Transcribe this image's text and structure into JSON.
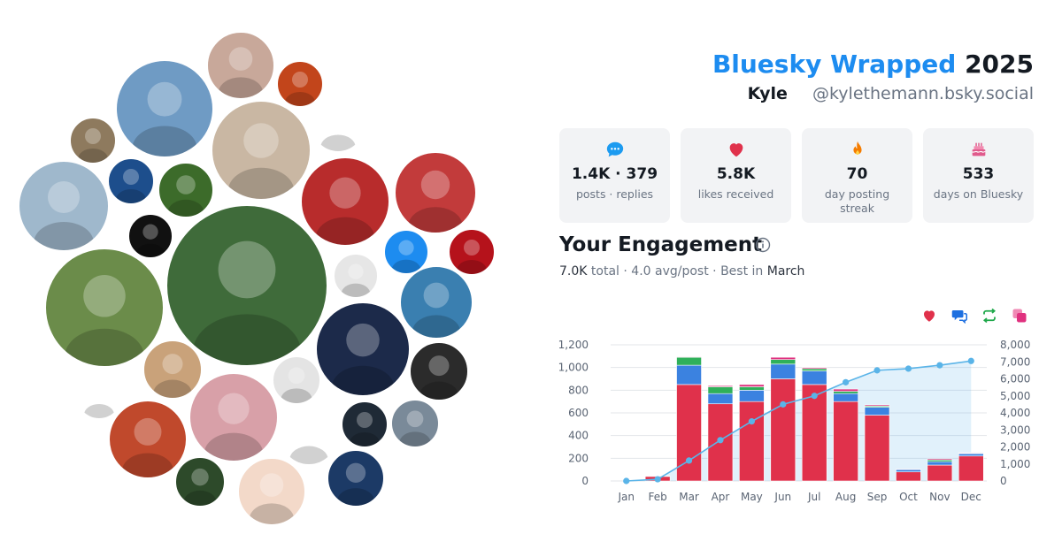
{
  "header": {
    "title_brand": "Bluesky Wrapped",
    "title_year": "2025",
    "user_name": "Kyle",
    "user_handle": "@kylethemann.bsky.social"
  },
  "stats": [
    {
      "icon": "speech-bubble-icon",
      "value": "1.4K · 379",
      "label": "posts · replies",
      "color": "#1d9bf0"
    },
    {
      "icon": "heart-icon",
      "value": "5.8K",
      "label": "likes received",
      "color": "#e0314b"
    },
    {
      "icon": "flame-icon",
      "value": "70",
      "label": "day posting streak",
      "color": "#f57c00"
    },
    {
      "icon": "cake-icon",
      "value": "533",
      "label": "days on Bluesky",
      "color": "#e05a8c"
    }
  ],
  "engagement": {
    "title": "Your Engagement",
    "total": "7.0K",
    "total_word": "total",
    "avg": "4.0 avg/post",
    "best_prefix": "Best in",
    "best_month": "March"
  },
  "legend_icons": [
    {
      "name": "heart-icon",
      "color": "#e0314b"
    },
    {
      "name": "reply-icon",
      "color": "#1d6fe0"
    },
    {
      "name": "repost-icon",
      "color": "#1fa84a"
    },
    {
      "name": "quote-icon",
      "color": "#e0317f"
    }
  ],
  "avatars": [
    {
      "name": "profile-photo",
      "bg": "#c8a89a"
    },
    {
      "name": "sunset-photo",
      "bg": "#c2451b"
    },
    {
      "name": "man-stadium-photo",
      "bg": "#6f9bc4"
    },
    {
      "name": "angels-halo-logo",
      "bg": "#ffffff"
    },
    {
      "name": "man-cap-photo",
      "bg": "#c9b7a3"
    },
    {
      "name": "woman-smiling-photo",
      "bg": "#8e7a5e"
    },
    {
      "name": "skn-news-logo",
      "bg": "#1d4e8c"
    },
    {
      "name": "bat-mask-avatar",
      "bg": "#3c6b2a"
    },
    {
      "name": "woman-red-cap-photo",
      "bg": "#b82c2c"
    },
    {
      "name": "elf-art-avatar",
      "bg": "#c23b3b"
    },
    {
      "name": "monitor-stand-photo",
      "bg": "#9fb8cc"
    },
    {
      "name": "athletics-a-logo",
      "bg": "#111111"
    },
    {
      "name": "anime-angels-avatar",
      "bg": "#3f6b3a"
    },
    {
      "name": "poop-emoji-badge",
      "bg": "#1d8cf0"
    },
    {
      "name": "angels-a-logo",
      "bg": "#b5121b"
    },
    {
      "name": "woman-sunglasses-photo",
      "bg": "#6b8c4a"
    },
    {
      "name": "sketch-avatar",
      "bg": "#e6e6e6"
    },
    {
      "name": "man-lake-photo",
      "bg": "#3a7fb0"
    },
    {
      "name": "halos-hub-logo",
      "bg": "#1c2a4a"
    },
    {
      "name": "woman-glasses-photo",
      "bg": "#c9a27a"
    },
    {
      "name": "man-suit-photo",
      "bg": "#e4e4e4"
    },
    {
      "name": "survivor-logo",
      "bg": "#2b2b2b"
    },
    {
      "name": "catcher-mask-icon",
      "bg": "#ffffff"
    },
    {
      "name": "goblin-art-avatar",
      "bg": "#c0492c"
    },
    {
      "name": "woman-kirby-photo",
      "bg": "#d8a0a8"
    },
    {
      "name": "eagles-logo",
      "bg": "#ffffff"
    },
    {
      "name": "man-bald-photo",
      "bg": "#1f2a36"
    },
    {
      "name": "man-blue-shirt-photo",
      "bg": "#7a8a99"
    },
    {
      "name": "bn-logo",
      "bg": "#2d4a2a"
    },
    {
      "name": "snorlax-avatar",
      "bg": "#f3d9c9"
    },
    {
      "name": "talkin-baseball-logo",
      "bg": "#1c3a66"
    }
  ],
  "chart_data": {
    "type": "bar",
    "categories": [
      "Jan",
      "Feb",
      "Mar",
      "Apr",
      "May",
      "Jun",
      "Jul",
      "Aug",
      "Sep",
      "Oct",
      "Nov",
      "Dec"
    ],
    "stacked": true,
    "series": [
      {
        "name": "Likes",
        "color": "#e0314b",
        "values": [
          0,
          40,
          850,
          680,
          700,
          900,
          850,
          700,
          580,
          80,
          140,
          220
        ]
      },
      {
        "name": "Replies",
        "color": "#3b82e0",
        "values": [
          0,
          5,
          170,
          90,
          100,
          130,
          120,
          70,
          70,
          20,
          30,
          20
        ]
      },
      {
        "name": "Reposts",
        "color": "#2fb05a",
        "values": [
          0,
          0,
          70,
          60,
          30,
          40,
          20,
          20,
          10,
          0,
          15,
          5
        ]
      },
      {
        "name": "Quotes",
        "color": "#e0317f",
        "values": [
          0,
          0,
          5,
          10,
          20,
          20,
          10,
          20,
          10,
          5,
          10,
          5
        ]
      }
    ],
    "cumulative": {
      "color": "#5ab4e8",
      "values": [
        0,
        100,
        1200,
        2400,
        3500,
        4500,
        5000,
        5800,
        6500,
        6600,
        6800,
        7050
      ]
    },
    "ylim_left": [
      0,
      1200
    ],
    "yticks_left": [
      "0",
      "200",
      "400",
      "600",
      "800",
      "1,000",
      "1,200"
    ],
    "ylim_right": [
      0,
      8000
    ],
    "yticks_right": [
      "0",
      "1,000",
      "2,000",
      "3,000",
      "4,000",
      "5,000",
      "6,000",
      "7,000",
      "8,000"
    ],
    "grid": true
  }
}
